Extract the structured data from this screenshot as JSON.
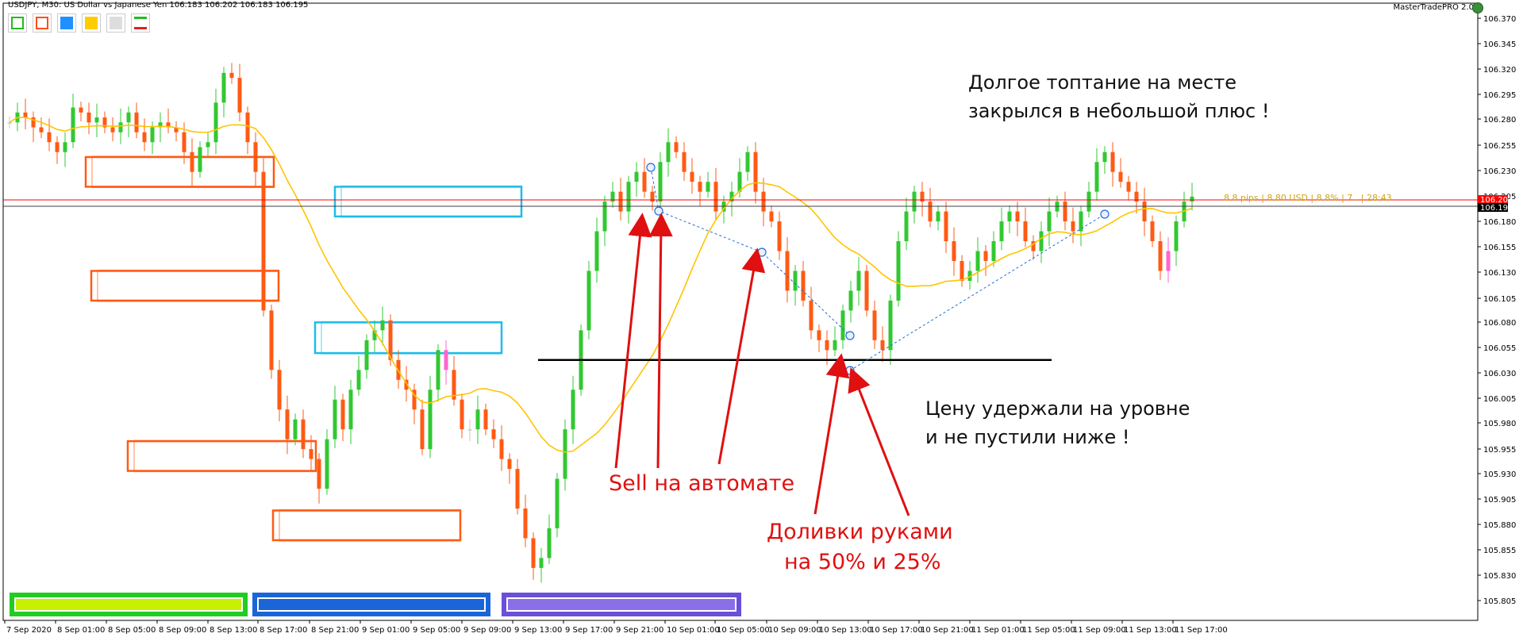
{
  "header": {
    "symbol_info": "USDJPY, M30:  US Dollar vs Japanese Yen  106.183 106.202 106.183 106.195",
    "brand": "MasterTradePRO 2.0"
  },
  "toolbar": [
    {
      "name": "green-box-button",
      "color": "#22bb22",
      "fill": "none"
    },
    {
      "name": "orange-box-button",
      "color": "#ff4d1a",
      "fill": "none"
    },
    {
      "name": "blue-box-button",
      "color": "#1e90ff",
      "fill": "#1e90ff"
    },
    {
      "name": "yellow-box-button",
      "color": "#ffcc00",
      "fill": "#ffcc00"
    },
    {
      "name": "gray-box-button",
      "color": "#cccccc",
      "fill": "#dddddd"
    },
    {
      "name": "lines-button",
      "color": "#e02020",
      "fill": "none"
    }
  ],
  "position_line_text": "8.8 pips | 8.80 USD | 8.8% | 7.. | 28:43",
  "annotations": {
    "top_right_line1": "Долгое топтание на месте",
    "top_right_line2": "закрылся  в небольшой плюс !",
    "mid_right_line1": "Цену удержали на уровне",
    "mid_right_line2": "и не пустили ниже !",
    "sell_auto": "Sell на автомате",
    "manual_line1": "Доливки руками",
    "manual_line2": "на 50% и 25%"
  },
  "colors": {
    "bull": "#32c832",
    "bear": "#ff5a14",
    "doji": "#c8c8c8",
    "pink": "#ff66cc",
    "ma": "#ffc400",
    "arrow": "#e01010",
    "price_red": "#ff0000",
    "price_gray": "#404040"
  },
  "chart_data": {
    "type": "candlestick",
    "symbol": "USDJPY",
    "timeframe": "M30",
    "ylim": [
      105.79,
      106.38
    ],
    "y_ticks": [
      "106.370",
      "106.345",
      "106.320",
      "106.295",
      "106.280",
      "106.255",
      "106.230",
      "106.205",
      "106.180",
      "106.155",
      "106.130",
      "106.105",
      "106.080",
      "106.055",
      "106.030",
      "106.005",
      "105.980",
      "105.955",
      "105.930",
      "105.905",
      "105.880",
      "105.855",
      "105.830",
      "105.805"
    ],
    "current_price_labels": [
      {
        "value": "106.202",
        "color": "#ff0000"
      },
      {
        "value": "106.195",
        "color": "#000000"
      }
    ],
    "x_labels": [
      "7 Sep 2020",
      "8 Sep 01:00",
      "8 Sep 05:00",
      "8 Sep 09:00",
      "8 Sep 13:00",
      "8 Sep 17:00",
      "8 Sep 21:00",
      "9 Sep 01:00",
      "9 Sep 05:00",
      "9 Sep 09:00",
      "9 Sep 13:00",
      "9 Sep 17:00",
      "9 Sep 21:00",
      "10 Sep 01:00",
      "10 Sep 05:00",
      "10 Sep 09:00",
      "10 Sep 13:00",
      "10 Sep 17:00",
      "10 Sep 21:00",
      "11 Sep 01:00",
      "11 Sep 05:00",
      "11 Sep 09:00",
      "11 Sep 13:00",
      "11 Sep 17:00"
    ],
    "candles_close": [
      106.27,
      106.28,
      106.275,
      106.265,
      106.26,
      106.25,
      106.24,
      106.25,
      106.285,
      106.28,
      106.27,
      106.275,
      106.265,
      106.26,
      106.27,
      106.28,
      106.26,
      106.25,
      106.265,
      106.27,
      106.265,
      106.26,
      106.24,
      106.22,
      106.245,
      106.25,
      106.29,
      106.32,
      106.315,
      106.28,
      106.25,
      106.22,
      106.08,
      106.02,
      105.98,
      105.95,
      105.97,
      105.94,
      105.93,
      105.9,
      105.95,
      105.99,
      105.96,
      106.0,
      106.02,
      106.05,
      106.06,
      106.07,
      106.03,
      106.01,
      106.0,
      105.98,
      105.94,
      106.0,
      106.04,
      106.02,
      105.99,
      105.96,
      105.96,
      105.98,
      105.96,
      105.95,
      105.93,
      105.92,
      105.88,
      105.85,
      105.82,
      105.83,
      105.86,
      105.91,
      105.96,
      106.0,
      106.06,
      106.12,
      106.16,
      106.19,
      106.2,
      106.18,
      106.21,
      106.22,
      106.2,
      106.19,
      106.23,
      106.25,
      106.24,
      106.22,
      106.21,
      106.2,
      106.21,
      106.18,
      106.19,
      106.2,
      106.22,
      106.24,
      106.2,
      106.18,
      106.17,
      106.14,
      106.1,
      106.12,
      106.09,
      106.06,
      106.05,
      106.04,
      106.05,
      106.08,
      106.1,
      106.12,
      106.08,
      106.05,
      106.04,
      106.09,
      106.15,
      106.18,
      106.2,
      106.19,
      106.17,
      106.18,
      106.15,
      106.13,
      106.11,
      106.12,
      106.14,
      106.13,
      106.15,
      106.17,
      106.18,
      106.17,
      106.15,
      106.14,
      106.16,
      106.18,
      106.19,
      106.17,
      106.16,
      106.18,
      106.2,
      106.23,
      106.24,
      106.22,
      106.21,
      106.2,
      106.19,
      106.17,
      106.15,
      106.12,
      106.14,
      106.17,
      106.19,
      106.195
    ],
    "ma_line_label": "",
    "support_level": 106.03,
    "zones": [
      {
        "color": "#ff5a14",
        "top": 106.235,
        "bottom": 106.205,
        "x0": 108,
        "x1": 345
      },
      {
        "color": "#ff5a14",
        "top": 106.12,
        "bottom": 106.09,
        "x0": 115,
        "x1": 351
      },
      {
        "color": "#1fbdea",
        "top": 106.205,
        "bottom": 106.175,
        "x0": 422,
        "x1": 657
      },
      {
        "color": "#1fbdea",
        "top": 106.068,
        "bottom": 106.037,
        "x0": 397,
        "x1": 632
      },
      {
        "color": "#ff5a14",
        "top": 105.948,
        "bottom": 105.918,
        "x0": 161,
        "x1": 398
      },
      {
        "color": "#ff5a14",
        "top": 105.878,
        "bottom": 105.848,
        "x0": 344,
        "x1": 580
      }
    ]
  },
  "bottom_panels": [
    {
      "name": "green-panel-button",
      "color": "#22cc22",
      "inner": "#c8f000"
    },
    {
      "name": "blue-panel-button",
      "color": "#1a66d8",
      "inner": "#1a66d8"
    },
    {
      "name": "purple-panel-button",
      "color": "#6a4fd8",
      "inner": "#8a6fe8"
    }
  ]
}
